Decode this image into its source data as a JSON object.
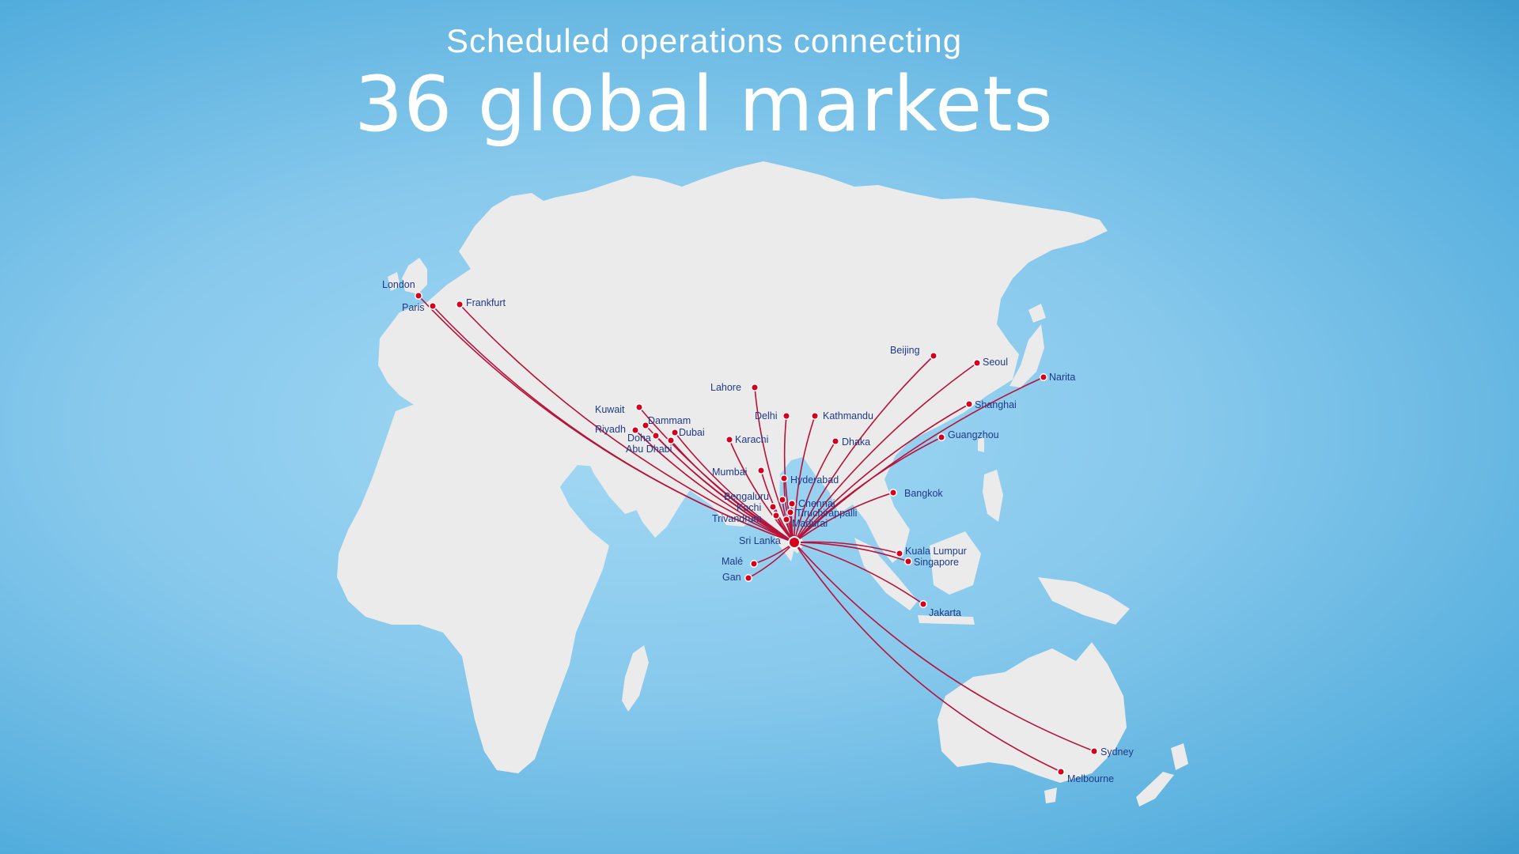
{
  "header": {
    "subtitle": "Scheduled operations connecting",
    "title": "36 global markets"
  },
  "colors": {
    "route": "#b8123a",
    "marker": "#d6001c",
    "label": "#1f3b86",
    "land": "#ebebeb"
  },
  "hub": {
    "name": "Sri Lanka",
    "icon": "hub-marker-icon"
  },
  "destinations": [
    {
      "name": "London"
    },
    {
      "name": "Paris"
    },
    {
      "name": "Frankfurt"
    },
    {
      "name": "Kuwait"
    },
    {
      "name": "Dammam"
    },
    {
      "name": "Riyadh"
    },
    {
      "name": "Doha"
    },
    {
      "name": "Dubai"
    },
    {
      "name": "Abu Dhabi"
    },
    {
      "name": "Karachi"
    },
    {
      "name": "Lahore"
    },
    {
      "name": "Delhi"
    },
    {
      "name": "Kathmandu"
    },
    {
      "name": "Dhaka"
    },
    {
      "name": "Mumbai"
    },
    {
      "name": "Hyderabad"
    },
    {
      "name": "Bengaluru"
    },
    {
      "name": "Chennai"
    },
    {
      "name": "Kochi"
    },
    {
      "name": "Tiruchirappalli"
    },
    {
      "name": "Trivandrum"
    },
    {
      "name": "Madurai"
    },
    {
      "name": "Malé"
    },
    {
      "name": "Gan"
    },
    {
      "name": "Beijing"
    },
    {
      "name": "Seoul"
    },
    {
      "name": "Narita"
    },
    {
      "name": "Shanghai"
    },
    {
      "name": "Guangzhou"
    },
    {
      "name": "Bangkok"
    },
    {
      "name": "Kuala Lumpur"
    },
    {
      "name": "Singapore"
    },
    {
      "name": "Jakarta"
    },
    {
      "name": "Sydney"
    },
    {
      "name": "Melbourne"
    }
  ]
}
